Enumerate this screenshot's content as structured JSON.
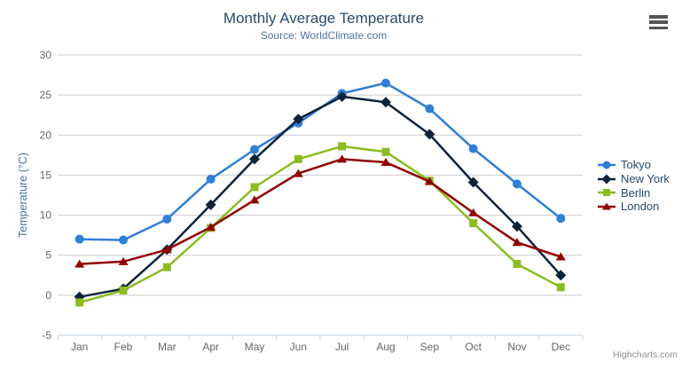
{
  "chart_data": {
    "type": "line",
    "title": "Monthly Average Temperature",
    "subtitle": "Source: WorldClimate.com",
    "ylabel": "Temperature (°C)",
    "xlabel": "",
    "categories": [
      "Jan",
      "Feb",
      "Mar",
      "Apr",
      "May",
      "Jun",
      "Jul",
      "Aug",
      "Sep",
      "Oct",
      "Nov",
      "Dec"
    ],
    "ylim": [
      -5,
      30
    ],
    "ytick_interval": 5,
    "grid": true,
    "legend_position": "right",
    "series": [
      {
        "name": "Tokyo",
        "color": "#2f7ed8",
        "marker": "circle",
        "values": [
          7.0,
          6.9,
          9.5,
          14.5,
          18.2,
          21.5,
          25.2,
          26.5,
          23.3,
          18.3,
          13.9,
          9.6
        ]
      },
      {
        "name": "New York",
        "color": "#0d233a",
        "marker": "diamond",
        "values": [
          -0.2,
          0.8,
          5.7,
          11.3,
          17.0,
          22.0,
          24.8,
          24.1,
          20.1,
          14.1,
          8.6,
          2.5
        ]
      },
      {
        "name": "Berlin",
        "color": "#8bbc21",
        "marker": "square",
        "values": [
          -0.9,
          0.6,
          3.5,
          8.4,
          13.5,
          17.0,
          18.6,
          17.9,
          14.3,
          9.0,
          3.9,
          1.0
        ]
      },
      {
        "name": "London",
        "color": "#910000",
        "marker": "triangle",
        "values": [
          3.9,
          4.2,
          5.7,
          8.5,
          11.9,
          15.2,
          17.0,
          16.6,
          14.2,
          10.3,
          6.6,
          4.8
        ]
      }
    ],
    "credits": "Highcharts.com"
  },
  "icons": {
    "context_menu": "hamburger-icon"
  },
  "colors": {
    "title": "#274b6d",
    "subtitle": "#4d759e",
    "axis_label": "#666666",
    "y_axis_title": "#4572A7",
    "gridline": "#cccccc",
    "axis_line": "#C0D0E0"
  }
}
